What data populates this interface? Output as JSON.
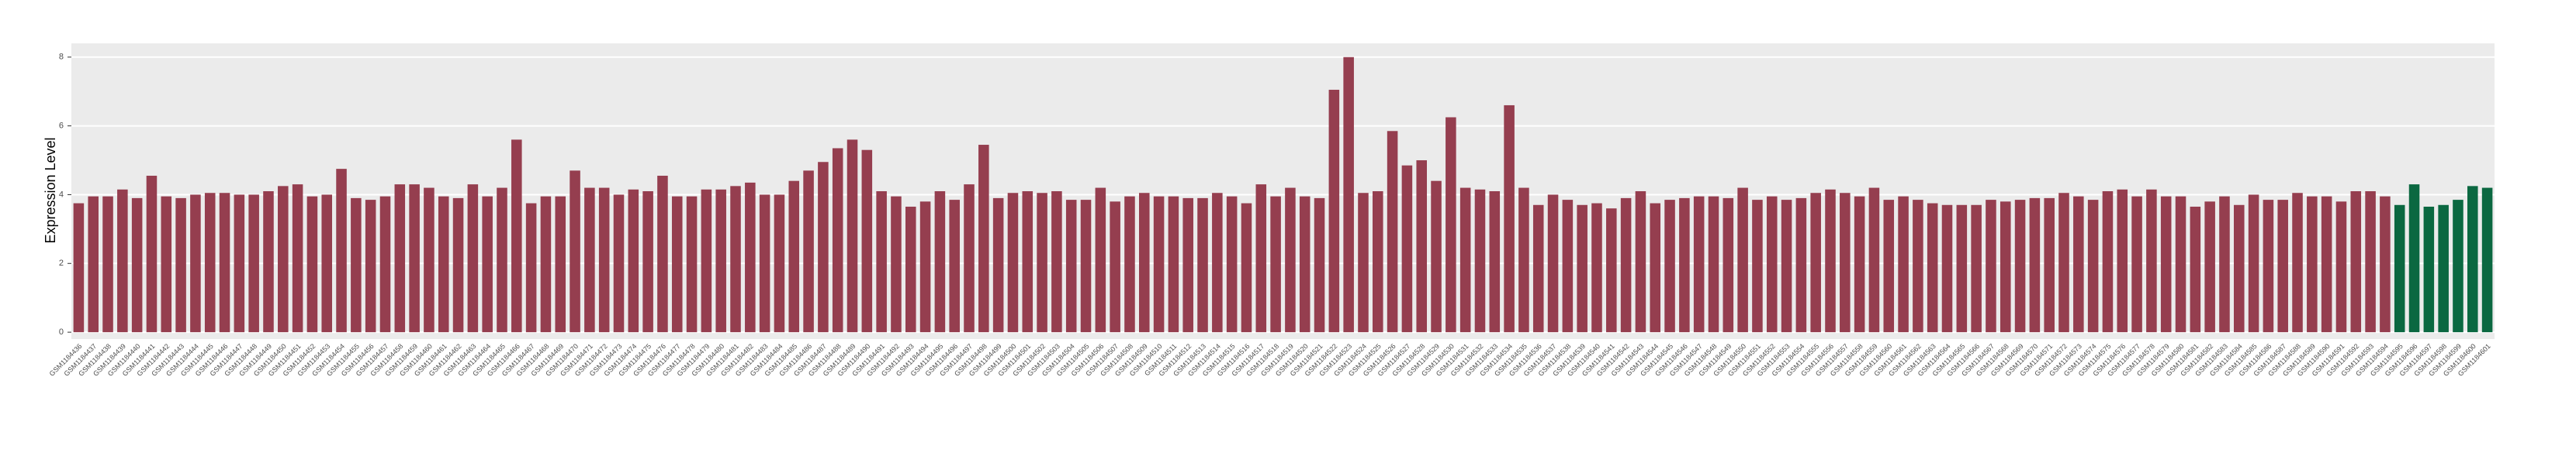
{
  "chart_data": {
    "type": "bar",
    "y_label": "Expression Level",
    "categories": [
      "GSM1184436",
      "GSM1184437",
      "GSM1184438",
      "GSM1184439",
      "GSM1184440",
      "GSM1184441",
      "GSM1184442",
      "GSM1184443",
      "GSM1184444",
      "GSM1184445",
      "GSM1184446",
      "GSM1184447",
      "GSM1184448",
      "GSM1184449",
      "GSM1184450",
      "GSM1184451",
      "GSM1184452",
      "GSM1184453",
      "GSM1184454",
      "GSM1184455",
      "GSM1184456",
      "GSM1184457",
      "GSM1184458",
      "GSM1184459",
      "GSM1184460",
      "GSM1184461",
      "GSM1184462",
      "GSM1184463",
      "GSM1184464",
      "GSM1184465",
      "GSM1184466",
      "GSM1184467",
      "GSM1184468",
      "GSM1184469",
      "GSM1184470",
      "GSM1184471",
      "GSM1184472",
      "GSM1184473",
      "GSM1184474",
      "GSM1184475",
      "GSM1184476",
      "GSM1184477",
      "GSM1184478",
      "GSM1184479",
      "GSM1184480",
      "GSM1184481",
      "GSM1184482",
      "GSM1184483",
      "GSM1184484",
      "GSM1184485",
      "GSM1184486",
      "GSM1184487",
      "GSM1184488",
      "GSM1184489",
      "GSM1184490",
      "GSM1184491",
      "GSM1184492",
      "GSM1184493",
      "GSM1184494",
      "GSM1184495",
      "GSM1184496",
      "GSM1184497",
      "GSM1184498",
      "GSM1184499",
      "GSM1184500",
      "GSM1184501",
      "GSM1184502",
      "GSM1184503",
      "GSM1184504",
      "GSM1184505",
      "GSM1184506",
      "GSM1184507",
      "GSM1184508",
      "GSM1184509",
      "GSM1184510",
      "GSM1184511",
      "GSM1184512",
      "GSM1184513",
      "GSM1184514",
      "GSM1184515",
      "GSM1184516",
      "GSM1184517",
      "GSM1184518",
      "GSM1184519",
      "GSM1184520",
      "GSM1184521",
      "GSM1184522",
      "GSM1184523",
      "GSM1184524",
      "GSM1184525",
      "GSM1184526",
      "GSM1184527",
      "GSM1184528",
      "GSM1184529",
      "GSM1184530",
      "GSM1184531",
      "GSM1184532",
      "GSM1184533",
      "GSM1184534",
      "GSM1184535",
      "GSM1184536",
      "GSM1184537",
      "GSM1184538",
      "GSM1184539",
      "GSM1184540",
      "GSM1184541",
      "GSM1184542",
      "GSM1184543",
      "GSM1184544",
      "GSM1184545",
      "GSM1184546",
      "GSM1184547",
      "GSM1184548",
      "GSM1184549",
      "GSM1184550",
      "GSM1184551",
      "GSM1184552",
      "GSM1184553",
      "GSM1184554",
      "GSM1184555",
      "GSM1184556",
      "GSM1184557",
      "GSM1184558",
      "GSM1184559",
      "GSM1184560",
      "GSM1184561",
      "GSM1184562",
      "GSM1184563",
      "GSM1184564",
      "GSM1184565",
      "GSM1184566",
      "GSM1184567",
      "GSM1184568",
      "GSM1184569",
      "GSM1184570",
      "GSM1184571",
      "GSM1184572",
      "GSM1184573",
      "GSM1184574",
      "GSM1184575",
      "GSM1184576",
      "GSM1184577",
      "GSM1184578",
      "GSM1184579",
      "GSM1184580",
      "GSM1184581",
      "GSM1184582",
      "GSM1184583",
      "GSM1184584",
      "GSM1184585",
      "GSM1184586",
      "GSM1184587",
      "GSM1184588",
      "GSM1184589",
      "GSM1184590",
      "GSM1184591",
      "GSM1184592",
      "GSM1184593",
      "GSM1184594",
      "GSM1184595",
      "GSM1184596",
      "GSM1184597",
      "GSM1184598",
      "GSM1184599",
      "GSM1184600",
      "GSM1184601"
    ],
    "values": [
      3.75,
      3.95,
      3.95,
      4.15,
      3.9,
      4.55,
      3.95,
      3.9,
      4.0,
      4.05,
      4.05,
      4.0,
      4.0,
      4.1,
      4.25,
      4.3,
      3.95,
      4.0,
      4.75,
      3.9,
      3.85,
      3.95,
      4.3,
      4.3,
      4.2,
      3.95,
      3.9,
      4.3,
      3.95,
      4.2,
      5.6,
      3.75,
      3.95,
      3.95,
      4.7,
      4.2,
      4.2,
      4.0,
      4.15,
      4.1,
      4.55,
      3.95,
      3.95,
      4.15,
      4.15,
      4.25,
      4.35,
      4.0,
      4.0,
      4.4,
      4.7,
      4.95,
      5.35,
      5.6,
      5.3,
      4.1,
      3.95,
      3.65,
      3.8,
      4.1,
      3.85,
      4.3,
      5.45,
      3.9,
      4.05,
      4.1,
      4.05,
      4.1,
      3.85,
      3.85,
      4.2,
      3.8,
      3.95,
      4.05,
      3.95,
      3.95,
      3.9,
      3.9,
      4.05,
      3.95,
      3.75,
      4.3,
      3.95,
      4.2,
      3.95,
      3.9,
      7.05,
      8.0,
      4.05,
      4.1,
      5.85,
      4.85,
      5.0,
      4.4,
      6.25,
      4.2,
      4.15,
      4.1,
      6.6,
      4.2,
      3.7,
      4.0,
      3.85,
      3.7,
      3.75,
      3.6,
      3.9,
      4.1,
      3.75,
      3.85,
      3.9,
      3.95,
      3.95,
      3.9,
      4.2,
      3.85,
      3.95,
      3.85,
      3.9,
      4.05,
      4.15,
      4.05,
      3.95,
      4.2,
      3.85,
      3.95,
      3.85,
      3.75,
      3.7,
      3.7,
      3.7,
      3.85,
      3.8,
      3.85,
      3.9,
      3.9,
      4.05,
      3.95,
      3.85,
      4.1,
      4.15,
      3.95,
      4.15,
      3.95,
      3.95,
      3.65,
      3.8,
      3.95,
      3.7,
      4.0,
      3.85,
      3.85,
      4.05,
      3.95,
      3.95,
      3.8,
      4.1,
      4.1,
      3.95,
      3.7,
      4.3,
      3.65,
      3.7,
      3.85,
      4.25,
      4.2
    ],
    "colors": [
      "#953e4f",
      "#953e4f",
      "#953e4f",
      "#953e4f",
      "#953e4f",
      "#953e4f",
      "#953e4f",
      "#953e4f",
      "#953e4f",
      "#953e4f",
      "#953e4f",
      "#953e4f",
      "#953e4f",
      "#953e4f",
      "#953e4f",
      "#953e4f",
      "#953e4f",
      "#953e4f",
      "#953e4f",
      "#953e4f",
      "#953e4f",
      "#953e4f",
      "#953e4f",
      "#953e4f",
      "#953e4f",
      "#953e4f",
      "#953e4f",
      "#953e4f",
      "#953e4f",
      "#953e4f",
      "#953e4f",
      "#953e4f",
      "#953e4f",
      "#953e4f",
      "#953e4f",
      "#953e4f",
      "#953e4f",
      "#953e4f",
      "#953e4f",
      "#953e4f",
      "#953e4f",
      "#953e4f",
      "#953e4f",
      "#953e4f",
      "#953e4f",
      "#953e4f",
      "#953e4f",
      "#953e4f",
      "#953e4f",
      "#953e4f",
      "#953e4f",
      "#953e4f",
      "#953e4f",
      "#953e4f",
      "#953e4f",
      "#953e4f",
      "#953e4f",
      "#953e4f",
      "#953e4f",
      "#953e4f",
      "#953e4f",
      "#953e4f",
      "#953e4f",
      "#953e4f",
      "#953e4f",
      "#953e4f",
      "#953e4f",
      "#953e4f",
      "#953e4f",
      "#953e4f",
      "#953e4f",
      "#953e4f",
      "#953e4f",
      "#953e4f",
      "#953e4f",
      "#953e4f",
      "#953e4f",
      "#953e4f",
      "#953e4f",
      "#953e4f",
      "#953e4f",
      "#953e4f",
      "#953e4f",
      "#953e4f",
      "#953e4f",
      "#953e4f",
      "#953e4f",
      "#953e4f",
      "#953e4f",
      "#953e4f",
      "#953e4f",
      "#953e4f",
      "#953e4f",
      "#953e4f",
      "#953e4f",
      "#953e4f",
      "#953e4f",
      "#953e4f",
      "#953e4f",
      "#953e4f",
      "#953e4f",
      "#953e4f",
      "#953e4f",
      "#953e4f",
      "#953e4f",
      "#953e4f",
      "#953e4f",
      "#953e4f",
      "#953e4f",
      "#953e4f",
      "#953e4f",
      "#953e4f",
      "#953e4f",
      "#953e4f",
      "#953e4f",
      "#953e4f",
      "#953e4f",
      "#953e4f",
      "#953e4f",
      "#953e4f",
      "#953e4f",
      "#953e4f",
      "#953e4f",
      "#953e4f",
      "#953e4f",
      "#953e4f",
      "#953e4f",
      "#953e4f",
      "#953e4f",
      "#953e4f",
      "#953e4f",
      "#953e4f",
      "#953e4f",
      "#953e4f",
      "#953e4f",
      "#953e4f",
      "#953e4f",
      "#953e4f",
      "#953e4f",
      "#953e4f",
      "#953e4f",
      "#953e4f",
      "#953e4f",
      "#953e4f",
      "#953e4f",
      "#953e4f",
      "#953e4f",
      "#953e4f",
      "#953e4f",
      "#953e4f",
      "#953e4f",
      "#953e4f",
      "#953e4f",
      "#953e4f",
      "#953e4f",
      "#953e4f",
      "#953e4f",
      "#953e4f",
      "#953e4f",
      "#0b6841",
      "#0b6841",
      "#0b6841",
      "#0b6841",
      "#0b6841",
      "#0b6841",
      "#0b6841"
    ],
    "ylim": [
      -0.2,
      8.4
    ],
    "yticks": [
      0,
      2,
      4,
      6,
      8
    ],
    "grid": true
  }
}
